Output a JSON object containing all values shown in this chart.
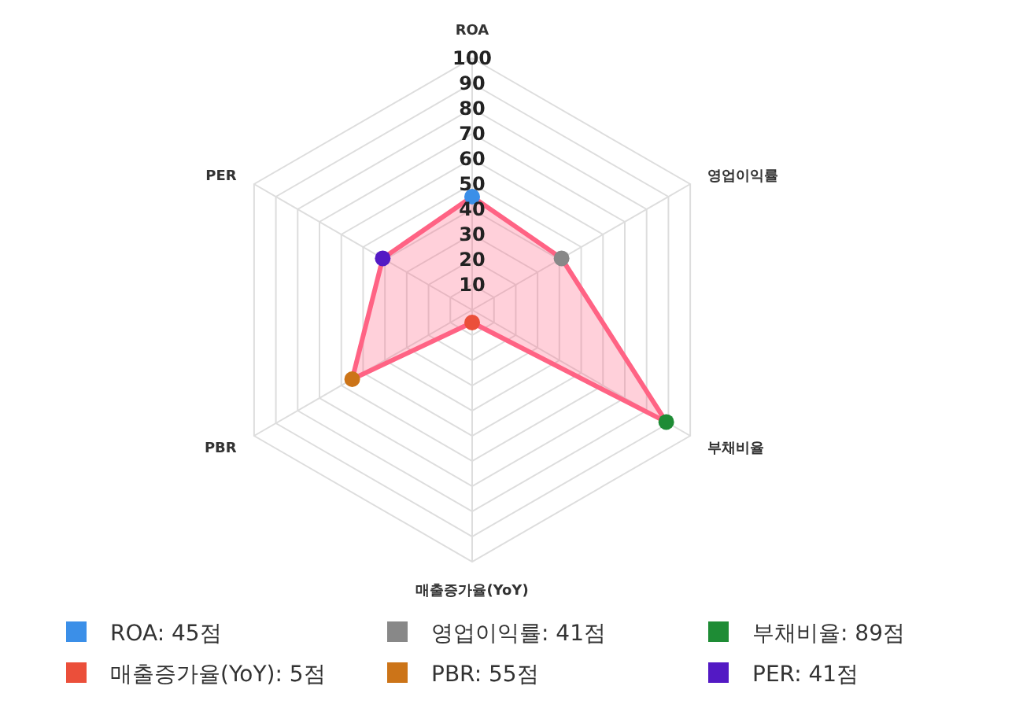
{
  "chart_data": {
    "type": "radar",
    "categories": [
      "ROA",
      "영업이익률",
      "부채비율",
      "매출증가율(YoY)",
      "PBR",
      "PER"
    ],
    "series": [
      {
        "color": "#ff6384",
        "values": [
          45,
          41,
          89,
          5,
          55,
          41
        ],
        "colors": [
          "#3b8fe8",
          "#888888",
          "#1e8c35",
          "#eb4f3a",
          "#cc7418",
          "#5319c4"
        ]
      }
    ],
    "ylim": [
      0,
      100
    ],
    "yticks": [
      10,
      20,
      30,
      40,
      50,
      60,
      70,
      80,
      90,
      100
    ],
    "grid": true,
    "marker": "circle",
    "annotations": [
      "ROA: 45점",
      "영업이익률: 41점",
      "부채비율: 89점",
      "매출증가율(YoY): 5점",
      "PBR: 55점",
      "PER: 41점"
    ]
  }
}
